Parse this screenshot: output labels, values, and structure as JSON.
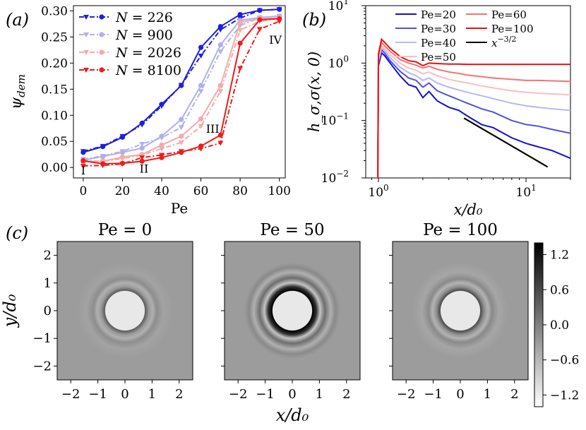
{
  "panel_labels": {
    "a": "(a)",
    "b": "(b)",
    "c": "(c)"
  },
  "chart_data": [
    {
      "type": "line",
      "panel": "(a)",
      "xlabel": "Pe",
      "ylabel": "ψ_dem",
      "xlim": [
        -5,
        103
      ],
      "ylim": [
        -0.02,
        0.31
      ],
      "x_ticks": [
        "0",
        "20",
        "40",
        "60",
        "80",
        "100"
      ],
      "y_ticks": [
        "0.00",
        "0.05",
        "0.10",
        "0.15",
        "0.20",
        "0.25",
        "0.30"
      ],
      "legend_position": "top-left",
      "annotations": [
        {
          "text": "I",
          "x": 0,
          "y": -0.005
        },
        {
          "text": "II",
          "x": 31,
          "y": -0.002
        },
        {
          "text": "III",
          "x": 66,
          "y": 0.075
        },
        {
          "text": "IV",
          "x": 98,
          "y": 0.245
        }
      ],
      "x": [
        0,
        10,
        20,
        30,
        40,
        50,
        60,
        70,
        80,
        90,
        100
      ],
      "series": [
        {
          "name": "N = 226",
          "color": "#1f1fe0",
          "circles": [
            0.029,
            0.04,
            0.058,
            0.085,
            0.121,
            0.157,
            0.23,
            0.27,
            0.293,
            0.301,
            0.303
          ],
          "triangles": [
            0.031,
            0.041,
            0.06,
            0.082,
            0.118,
            0.158,
            0.214,
            0.264,
            0.286,
            0.301,
            0.303
          ]
        },
        {
          "name": "N = 900",
          "color": "#aeb0ee",
          "circles": [
            0.014,
            0.021,
            0.029,
            0.037,
            0.06,
            0.092,
            0.157,
            0.235,
            0.282,
            0.287,
            0.29
          ],
          "triangles": [
            0.016,
            0.022,
            0.031,
            0.045,
            0.057,
            0.077,
            0.146,
            0.222,
            0.272,
            0.287,
            0.29
          ]
        },
        {
          "name": "N = 2026",
          "color": "#f6a9a9",
          "circles": [
            0.011,
            0.012,
            0.02,
            0.025,
            0.043,
            0.06,
            0.093,
            0.157,
            0.278,
            0.285,
            0.286
          ],
          "triangles": [
            0.013,
            0.012,
            0.017,
            0.024,
            0.036,
            0.048,
            0.079,
            0.146,
            0.263,
            0.28,
            0.286
          ]
        },
        {
          "name": "N = 8100",
          "color": "#ee1c1c",
          "circles": [
            0.013,
            0.007,
            0.008,
            0.012,
            0.019,
            0.029,
            0.041,
            0.062,
            0.238,
            0.283,
            0.285
          ],
          "triangles": [
            0.003,
            0.004,
            0.007,
            0.019,
            0.024,
            0.031,
            0.036,
            0.047,
            0.19,
            0.265,
            0.28
          ]
        }
      ]
    },
    {
      "type": "line",
      "panel": "(b)",
      "xlabel": "x/d₀",
      "ylabel": "h_σ,σ(x, 0)",
      "xscale": "log",
      "yscale": "log",
      "xlim": [
        0.82,
        20
      ],
      "ylim": [
        0.01,
        10
      ],
      "x_ticks": [
        "10⁰",
        "10¹"
      ],
      "y_ticks": [
        "10⁻²",
        "10⁻¹",
        "10⁰",
        "10¹"
      ],
      "legend_position": "top-right",
      "x": [
        1.0,
        1.05,
        1.1,
        1.2,
        1.4,
        1.6,
        1.8,
        2.0,
        2.2,
        2.5,
        3.0,
        3.5,
        4.0,
        5.0,
        6.0,
        8.0,
        10.0,
        12.0,
        15.0,
        20.0
      ],
      "series": [
        {
          "name": "Pe=20",
          "color": "#1010d8",
          "values": [
            0.9,
            1.5,
            1.35,
            1.0,
            0.6,
            0.42,
            0.38,
            0.25,
            0.32,
            0.22,
            0.17,
            0.15,
            0.12,
            0.085,
            0.075,
            0.05,
            0.04,
            0.035,
            0.03,
            0.022
          ]
        },
        {
          "name": "Pe=30",
          "color": "#4f50e0",
          "values": [
            1.0,
            1.7,
            1.5,
            1.1,
            0.72,
            0.55,
            0.5,
            0.38,
            0.45,
            0.33,
            0.27,
            0.23,
            0.2,
            0.16,
            0.14,
            0.1,
            0.085,
            0.08,
            0.07,
            0.06
          ]
        },
        {
          "name": "Pe=40",
          "color": "#b6b8ef",
          "values": [
            1.1,
            1.85,
            1.65,
            1.25,
            0.85,
            0.68,
            0.6,
            0.5,
            0.55,
            0.45,
            0.38,
            0.34,
            0.31,
            0.27,
            0.24,
            0.2,
            0.18,
            0.17,
            0.16,
            0.15
          ]
        },
        {
          "name": "Pe=50",
          "color": "#f7c0c0",
          "values": [
            1.2,
            2.0,
            1.8,
            1.4,
            1.0,
            0.82,
            0.75,
            0.65,
            0.7,
            0.6,
            0.52,
            0.48,
            0.45,
            0.4,
            0.37,
            0.33,
            0.31,
            0.3,
            0.29,
            0.28
          ]
        },
        {
          "name": "Pe=60",
          "color": "#f47474",
          "values": [
            1.3,
            2.3,
            2.0,
            1.6,
            1.15,
            1.0,
            0.92,
            0.82,
            0.88,
            0.78,
            0.7,
            0.66,
            0.62,
            0.58,
            0.55,
            0.52,
            0.5,
            0.5,
            0.49,
            0.48
          ]
        },
        {
          "name": "Pe=100",
          "color": "#ea1010",
          "values": [
            1.45,
            2.6,
            2.3,
            1.8,
            1.3,
            1.1,
            1.05,
            0.9,
            1.0,
            0.98,
            0.96,
            0.96,
            0.95,
            0.95,
            0.95,
            0.95,
            0.95,
            0.95,
            0.95,
            0.95
          ]
        }
      ],
      "reference_line": {
        "name": "x^{-3/2}",
        "label_main": "x",
        "label_exp": "−3/2",
        "x_range": [
          3.8,
          14
        ],
        "y_at_start": 0.11,
        "color": "#000000"
      }
    },
    {
      "type": "heatmap",
      "panel": "(c)",
      "xlabel": "x/d₀",
      "ylabel": "y/d₀",
      "xlim": [
        -2.5,
        2.5
      ],
      "ylim": [
        -2.5,
        2.5
      ],
      "x_ticks": [
        "−2",
        "−1",
        "0",
        "1",
        "2"
      ],
      "y_ticks": [
        "−2",
        "−1",
        "0",
        "1",
        "2"
      ],
      "panels": [
        {
          "title": "Pe = 0",
          "ring_contrast": 0.35
        },
        {
          "title": "Pe = 50",
          "ring_contrast": 1.0
        },
        {
          "title": "Pe = 100",
          "ring_contrast": 0.45
        }
      ],
      "colorbar": {
        "ticks": [
          "1.2",
          "0.6",
          "0.0",
          "−0.6",
          "−1.2"
        ],
        "range": [
          -1.4,
          1.4
        ]
      }
    }
  ]
}
